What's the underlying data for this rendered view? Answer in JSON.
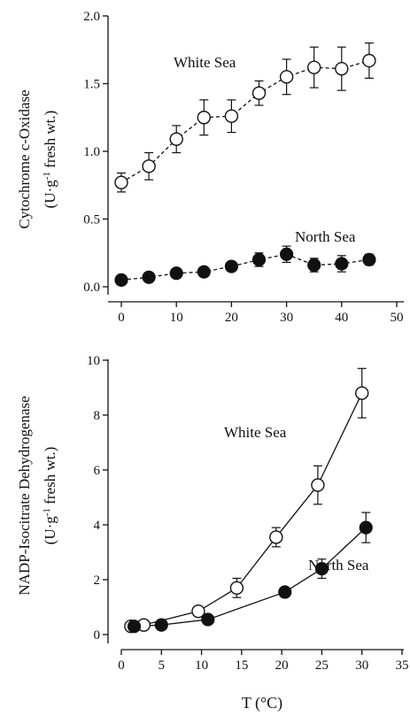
{
  "chart_data": [
    {
      "type": "line",
      "ylabel_line1": "Cytochrome c-Oxidase",
      "ylabel_line2": "(U·g",
      "ylabel_sup": "-1",
      "ylabel_line2_end": " fresh wt.)",
      "xlim": [
        0,
        50
      ],
      "ylim": [
        0,
        2.0
      ],
      "xticks": [
        "0",
        "10",
        "20",
        "30",
        "40",
        "50"
      ],
      "yticks": [
        "0.0",
        "0.5",
        "1.0",
        "1.5",
        "2.0"
      ],
      "line_style": "dashed",
      "series": [
        {
          "name": "White Sea",
          "marker": "open",
          "x": [
            0,
            5,
            10,
            15,
            20,
            25,
            30,
            35,
            40,
            45
          ],
          "y": [
            0.77,
            0.89,
            1.09,
            1.25,
            1.26,
            1.43,
            1.55,
            1.62,
            1.61,
            1.67
          ],
          "err": [
            0.07,
            0.1,
            0.1,
            0.13,
            0.12,
            0.09,
            0.13,
            0.15,
            0.16,
            0.13
          ]
        },
        {
          "name": "North Sea",
          "marker": "filled",
          "x": [
            0,
            5,
            10,
            15,
            20,
            25,
            30,
            35,
            40,
            45
          ],
          "y": [
            0.05,
            0.07,
            0.1,
            0.11,
            0.15,
            0.2,
            0.24,
            0.16,
            0.17,
            0.2
          ],
          "err": [
            0.0,
            0.0,
            0.0,
            0.0,
            0.0,
            0.05,
            0.06,
            0.05,
            0.06,
            0.04
          ]
        }
      ]
    },
    {
      "type": "line",
      "ylabel_line1": "NADP-Isocitrate Dehydrogenase",
      "ylabel_line2": "(U·g",
      "ylabel_sup": "-1",
      "ylabel_line2_end": " fresh wt.)",
      "xlabel": "T (°C)",
      "xlim": [
        0,
        35
      ],
      "ylim": [
        0,
        10
      ],
      "xticks": [
        "0",
        "5",
        "10",
        "15",
        "20",
        "25",
        "30",
        "35"
      ],
      "yticks": [
        "0",
        "2",
        "4",
        "6",
        "8",
        "10"
      ],
      "line_style": "solid",
      "series": [
        {
          "name": "White Sea",
          "marker": "open",
          "x": [
            1.2,
            2.8,
            9.6,
            14.4,
            19.3,
            24.5,
            30.0
          ],
          "y": [
            0.3,
            0.35,
            0.85,
            1.7,
            3.55,
            5.45,
            8.8
          ],
          "err": [
            0.0,
            0.0,
            0.0,
            0.35,
            0.35,
            0.7,
            0.9
          ]
        },
        {
          "name": "North Sea",
          "marker": "filled",
          "x": [
            1.6,
            5.0,
            10.8,
            20.4,
            25.0,
            30.5
          ],
          "y": [
            0.3,
            0.35,
            0.55,
            1.55,
            2.4,
            3.9
          ],
          "err": [
            0.0,
            0.0,
            0.0,
            0.0,
            0.35,
            0.55
          ]
        }
      ]
    }
  ]
}
